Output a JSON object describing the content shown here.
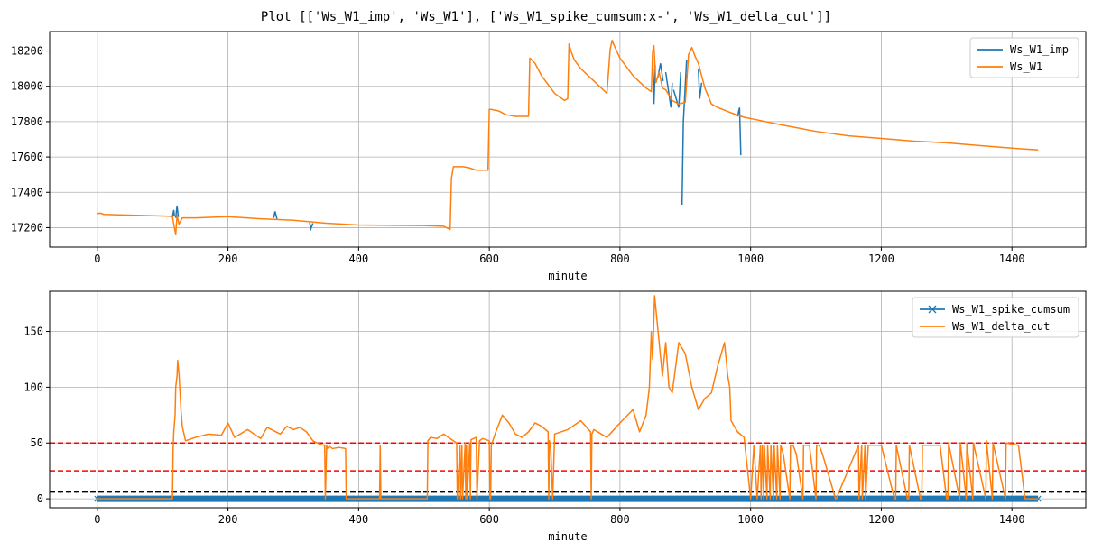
{
  "figure": {
    "title": "Plot [['Ws_W1_imp', 'Ws_W1'], ['Ws_W1_spike_cumsum:x-', 'Ws_W1_delta_cut']]"
  },
  "chart_data": [
    {
      "type": "line",
      "xlabel": "minute",
      "ylabel": "",
      "xlim": [
        -73,
        1513
      ],
      "ylim": [
        17090,
        18310
      ],
      "xticks": [
        0,
        200,
        400,
        600,
        800,
        1000,
        1200,
        1400
      ],
      "yticks": [
        17200,
        17400,
        17600,
        17800,
        18000,
        18200
      ],
      "grid": true,
      "legend_placement": "top-right",
      "series": [
        {
          "name": "Ws_W1_imp",
          "color": "#1f77b4",
          "x": [
            115,
            117,
            118,
            120,
            122,
            124,
            270,
            272,
            275,
            325,
            327,
            330,
            850,
            852,
            854,
            858,
            862,
            866,
            870,
            878,
            880,
            882,
            890,
            893,
            895,
            897,
            902,
            920,
            922,
            925,
            980,
            983,
            985,
            988,
            990
          ],
          "y": [
            17262,
            17300,
            17262,
            17255,
            17325,
            17260,
            17255,
            17292,
            17250,
            17228,
            17195,
            17225,
            18180,
            17900,
            18120,
            18050,
            18130,
            18030,
            18080,
            17880,
            18020,
            17980,
            17880,
            18080,
            17330,
            17800,
            18150,
            18100,
            17930,
            18020,
            17830,
            17880,
            17610,
            17860,
            17820
          ],
          "spikes_only": true
        },
        {
          "name": "Ws_W1",
          "color": "#ff7f0e",
          "x": [
            0,
            5,
            10,
            60,
            110,
            115,
            118,
            120,
            122,
            125,
            130,
            150,
            200,
            250,
            300,
            350,
            400,
            450,
            500,
            530,
            540,
            542,
            545,
            550,
            560,
            570,
            580,
            598,
            600,
            603,
            605,
            615,
            625,
            640,
            650,
            660,
            662,
            665,
            670,
            680,
            690,
            700,
            715,
            720,
            722,
            725,
            730,
            740,
            760,
            780,
            785,
            788,
            790,
            800,
            820,
            840,
            848,
            850,
            852,
            855,
            860,
            865,
            870,
            880,
            890,
            900,
            905,
            910,
            915,
            920,
            930,
            940,
            950,
            970,
            990,
            1010,
            1050,
            1100,
            1150,
            1200,
            1250,
            1300,
            1350,
            1400,
            1440
          ],
          "y": [
            17280,
            17282,
            17275,
            17270,
            17265,
            17262,
            17200,
            17160,
            17270,
            17220,
            17255,
            17255,
            17262,
            17250,
            17242,
            17225,
            17215,
            17213,
            17212,
            17208,
            17190,
            17480,
            17545,
            17545,
            17545,
            17538,
            17525,
            17525,
            17870,
            17870,
            17868,
            17860,
            17840,
            17830,
            17830,
            17830,
            18160,
            18150,
            18130,
            18060,
            18010,
            17960,
            17920,
            17930,
            18240,
            18200,
            18150,
            18100,
            18030,
            17960,
            18210,
            18260,
            18240,
            18160,
            18060,
            17990,
            17970,
            18200,
            18230,
            18020,
            18080,
            17990,
            17980,
            17920,
            17900,
            17910,
            18180,
            18220,
            18170,
            18130,
            17990,
            17900,
            17880,
            17850,
            17825,
            17810,
            17780,
            17745,
            17720,
            17705,
            17690,
            17680,
            17665,
            17650,
            17640
          ]
        }
      ]
    },
    {
      "type": "line",
      "xlabel": "minute",
      "ylabel": "",
      "xlim": [
        -73,
        1513
      ],
      "ylim": [
        -8,
        186
      ],
      "xticks": [
        0,
        200,
        400,
        600,
        800,
        1000,
        1200,
        1400
      ],
      "yticks": [
        0,
        50,
        100,
        150
      ],
      "grid": true,
      "legend_placement": "top-right",
      "hlines": [
        {
          "y": 50,
          "color": "#ff0000",
          "style": "dashed"
        },
        {
          "y": 25,
          "color": "#ff0000",
          "style": "dashed"
        },
        {
          "y": 6,
          "color": "#000000",
          "style": "dashed"
        }
      ],
      "series": [
        {
          "name": "Ws_W1_spike_cumsum",
          "color": "#1f77b4",
          "marker": "x",
          "x": [
            0,
            1440
          ],
          "y": [
            0,
            0
          ],
          "dense_markers": true
        },
        {
          "name": "Ws_W1_delta_cut",
          "color": "#ff7f0e",
          "x": [
            0,
            115,
            116,
            117,
            119,
            120,
            122,
            123,
            125,
            128,
            130,
            135,
            150,
            170,
            190,
            200,
            210,
            230,
            250,
            260,
            280,
            290,
            300,
            310,
            320,
            330,
            340,
            348,
            349,
            351,
            352,
            355,
            360,
            370,
            380,
            381,
            383,
            432,
            433,
            434,
            435,
            505,
            506,
            510,
            520,
            530,
            550,
            551,
            555,
            556,
            558,
            559,
            563,
            564,
            565,
            566,
            570,
            571,
            572,
            580,
            581,
            585,
            590,
            600,
            601,
            602,
            603,
            610,
            620,
            630,
            640,
            650,
            660,
            670,
            680,
            690,
            691,
            692,
            694,
            697,
            700,
            720,
            740,
            755,
            756,
            757,
            760,
            780,
            800,
            820,
            830,
            840,
            845,
            848,
            850,
            853,
            855,
            860,
            865,
            870,
            875,
            880,
            890,
            900,
            910,
            920,
            930,
            940,
            950,
            960,
            965,
            968,
            970,
            980,
            990,
            1000,
            1005,
            1010,
            1015,
            1016,
            1018,
            1020,
            1021,
            1025,
            1026,
            1030,
            1031,
            1035,
            1036,
            1040,
            1041,
            1045,
            1046,
            1050,
            1060,
            1061,
            1065,
            1070,
            1080,
            1081,
            1090,
            1100,
            1101,
            1105,
            1110,
            1130,
            1131,
            1165,
            1166,
            1170,
            1171,
            1175,
            1176,
            1180,
            1181,
            1200,
            1220,
            1222,
            1223,
            1240,
            1242,
            1243,
            1260,
            1262,
            1263,
            1280,
            1290,
            1300,
            1302,
            1303,
            1320,
            1321,
            1330,
            1331,
            1340,
            1341,
            1360,
            1361,
            1370,
            1371,
            1390,
            1391,
            1410,
            1420,
            1422,
            1440
          ],
          "y": [
            0,
            0,
            45,
            60,
            75,
            100,
            110,
            124,
            112,
            80,
            65,
            52,
            55,
            58,
            57,
            68,
            55,
            62,
            54,
            64,
            58,
            65,
            62,
            64,
            60,
            52,
            49,
            48,
            0,
            48,
            45,
            47,
            45,
            46,
            45,
            0,
            0,
            0,
            48,
            0,
            0,
            0,
            52,
            55,
            54,
            58,
            50,
            0,
            48,
            0,
            48,
            0,
            50,
            0,
            48,
            0,
            50,
            0,
            53,
            55,
            0,
            52,
            54,
            52,
            0,
            0,
            48,
            60,
            75,
            68,
            58,
            55,
            60,
            68,
            65,
            60,
            0,
            52,
            46,
            0,
            58,
            62,
            70,
            60,
            0,
            58,
            62,
            55,
            68,
            80,
            60,
            75,
            100,
            150,
            125,
            182,
            170,
            140,
            110,
            140,
            100,
            95,
            140,
            130,
            100,
            80,
            90,
            95,
            120,
            140,
            110,
            100,
            70,
            60,
            55,
            0,
            48,
            0,
            48,
            0,
            48,
            0,
            48,
            0,
            48,
            0,
            48,
            0,
            48,
            0,
            48,
            0,
            48,
            40,
            0,
            48,
            48,
            40,
            0,
            48,
            48,
            0,
            48,
            48,
            40,
            0,
            0,
            48,
            0,
            48,
            0,
            48,
            0,
            48,
            48,
            48,
            0,
            0,
            48,
            0,
            0,
            48,
            0,
            0,
            48,
            48,
            48,
            0,
            0,
            50,
            0,
            50,
            0,
            50,
            0,
            50,
            0,
            52,
            0,
            50,
            0,
            50,
            48,
            0,
            0,
            0
          ]
        }
      ]
    }
  ]
}
